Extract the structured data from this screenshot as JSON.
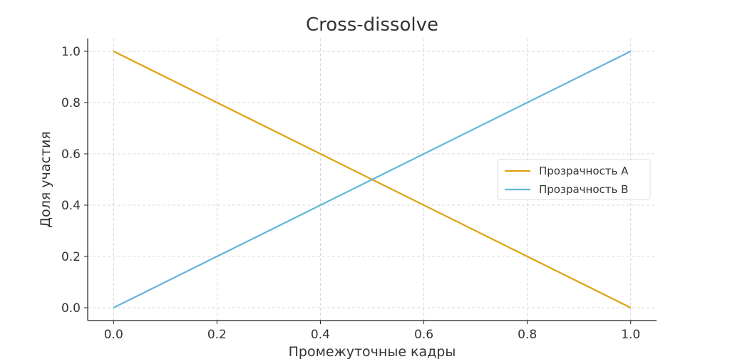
{
  "chart_data": {
    "type": "line",
    "title": "Cross-dissolve",
    "xlabel": "Промежуточные кадры",
    "ylabel": "Доля участия",
    "xlim": [
      -0.05,
      1.05
    ],
    "ylim": [
      -0.05,
      1.05
    ],
    "xticks": [
      "0.0",
      "0.2",
      "0.4",
      "0.6",
      "0.8",
      "1.0"
    ],
    "yticks": [
      "0.0",
      "0.2",
      "0.4",
      "0.6",
      "0.8",
      "1.0"
    ],
    "grid": true,
    "legend_position": "center-right",
    "series": [
      {
        "name": "Прозрачность A",
        "color": "#DDA20F",
        "x": [
          0,
          1
        ],
        "y": [
          1,
          0
        ]
      },
      {
        "name": "Прозрачность B",
        "color": "#62B5DA",
        "x": [
          0,
          1
        ],
        "y": [
          0,
          1
        ]
      }
    ]
  }
}
